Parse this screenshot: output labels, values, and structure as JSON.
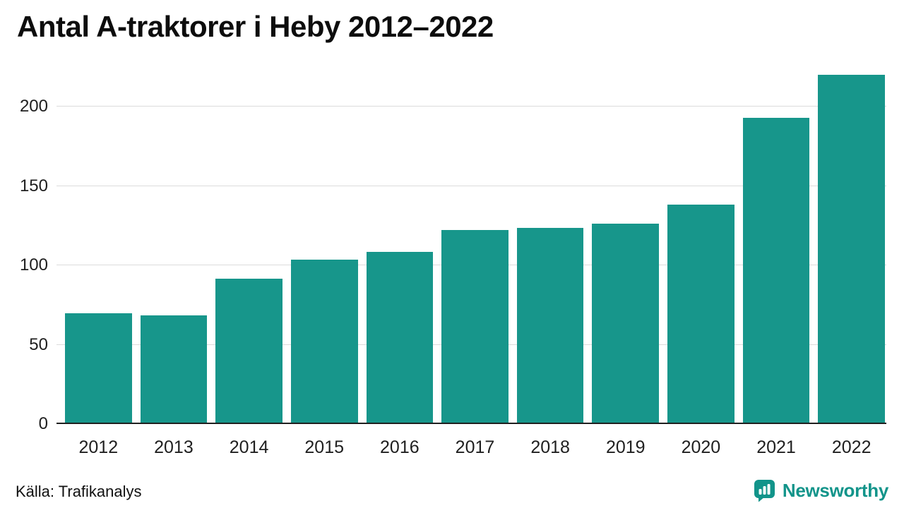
{
  "title": "Antal A-traktorer i Heby 2012–2022",
  "source": "Källa: Trafikanalys",
  "brand": {
    "name": "Newsworthy",
    "color": "#12948a"
  },
  "chart_data": {
    "type": "bar",
    "title": "Antal A-traktorer i Heby 2012–2022",
    "categories": [
      "2012",
      "2013",
      "2014",
      "2015",
      "2016",
      "2017",
      "2018",
      "2019",
      "2020",
      "2021",
      "2022"
    ],
    "values": [
      69,
      68,
      91,
      103,
      108,
      122,
      123,
      126,
      138,
      193,
      220
    ],
    "xlabel": "",
    "ylabel": "",
    "ylim": [
      0,
      225
    ],
    "yticks": [
      0,
      50,
      100,
      150,
      200
    ],
    "bar_color": "#17968b",
    "grid": true,
    "legend": false
  }
}
